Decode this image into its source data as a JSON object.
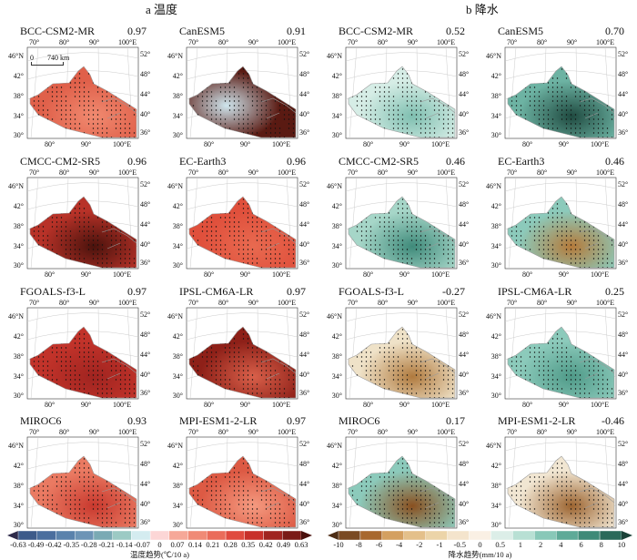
{
  "sections": {
    "a": "a 温度",
    "b": "b 降水"
  },
  "map_axes": {
    "top": [
      "70°",
      "80°",
      "90°",
      "100°E"
    ],
    "left": [
      "46°N",
      "42°",
      "38°",
      "34°",
      "30°"
    ],
    "right": [
      "52°",
      "48°",
      "44°",
      "40°",
      "36°"
    ],
    "bottom": [
      "80°",
      "90°",
      "100°E"
    ],
    "scale_bar": [
      "0",
      "740 km"
    ]
  },
  "panels": [
    {
      "model": "BCC-CSM2-MR",
      "value": "0.97",
      "base": "#e0604a",
      "accent": "#f08a70"
    },
    {
      "model": "CanESM5",
      "value": "0.91",
      "base": "#5a1a12",
      "accent": "#cfe6ee"
    },
    {
      "model": "CMCC-CM2-SR5",
      "value": "0.96",
      "base": "#b83228",
      "accent": "#4a120c"
    },
    {
      "model": "EC-Earth3",
      "value": "0.96",
      "base": "#e0503c",
      "accent": "#e86a50"
    },
    {
      "model": "FGOALS-f3-L",
      "value": "0.97",
      "base": "#c2332a",
      "accent": "#a02420"
    },
    {
      "model": "IPSL-CM6A-LR",
      "value": "0.97",
      "base": "#8e2018",
      "accent": "#d9604a"
    },
    {
      "model": "MIROC6",
      "value": "0.93",
      "base": "#ea7a62",
      "accent": "#c8392e"
    },
    {
      "model": "MPI-ESM1-2-LR",
      "value": "0.97",
      "base": "#dd5a44",
      "accent": "#f49a80"
    },
    {
      "model": "BCC-CSM2-MR",
      "value": "0.52",
      "base": "#d6ede6",
      "accent": "#7fbfb0"
    },
    {
      "model": "CanESM5",
      "value": "0.70",
      "base": "#6db3a3",
      "accent": "#1f4a40"
    },
    {
      "model": "CMCC-CM2-SR5",
      "value": "0.46",
      "base": "#a6d6c8",
      "accent": "#3f8a7a"
    },
    {
      "model": "EC-Earth3",
      "value": "0.46",
      "base": "#8ccabb",
      "accent": "#b57a3a"
    },
    {
      "model": "FGOALS-f3-L",
      "value": "-0.27",
      "base": "#efe2c8",
      "accent": "#b07a3e"
    },
    {
      "model": "IPSL-CM6A-LR",
      "value": "0.25",
      "base": "#8ccabb",
      "accent": "#4f9a88"
    },
    {
      "model": "MIROC6",
      "value": "0.17",
      "base": "#8ccabb",
      "accent": "#8a5020"
    },
    {
      "model": "MPI-ESM1-2-LR",
      "value": "-0.46",
      "base": "#f1e6d2",
      "accent": "#9c6430"
    }
  ],
  "colorbars": {
    "temperature": {
      "ticks": [
        "-0.63",
        "-0.49",
        "-0.42",
        "-0.35",
        "-0.28",
        "-0.21",
        "-0.14",
        "-0.07",
        "0",
        "0.07",
        "0.14",
        "0.21",
        "0.28",
        "0.35",
        "0.42",
        "0.49",
        "0.63"
      ],
      "colors": [
        "#2e2a4a",
        "#3c5a8a",
        "#4a6e9e",
        "#5a82ac",
        "#6d94b6",
        "#7aaab4",
        "#9ccac4",
        "#d4ecf0",
        "#fcd6d6",
        "#f6a898",
        "#f08a76",
        "#ea6c5a",
        "#e04a3e",
        "#c8302a",
        "#a02420",
        "#7a1a16",
        "#4a100c"
      ],
      "label": "温度趋势(℃/10 a)"
    },
    "precipitation": {
      "ticks": [
        "-10",
        "-8",
        "-6",
        "-4",
        "-2",
        "-1",
        "-0.5",
        "0",
        "0.5",
        "1",
        "2",
        "4",
        "6",
        "8",
        "10"
      ],
      "colors": [
        "#4e2e16",
        "#7a4a22",
        "#a8682e",
        "#d4a060",
        "#e4c08a",
        "#ecd4a8",
        "#f4e4cc",
        "#faf0e4",
        "#dceee8",
        "#b8e0d4",
        "#88c8b8",
        "#5eaa98",
        "#3e8a78",
        "#2a6a5a",
        "#1a4238"
      ],
      "label": "降水趋势(mm/10 a)"
    }
  }
}
